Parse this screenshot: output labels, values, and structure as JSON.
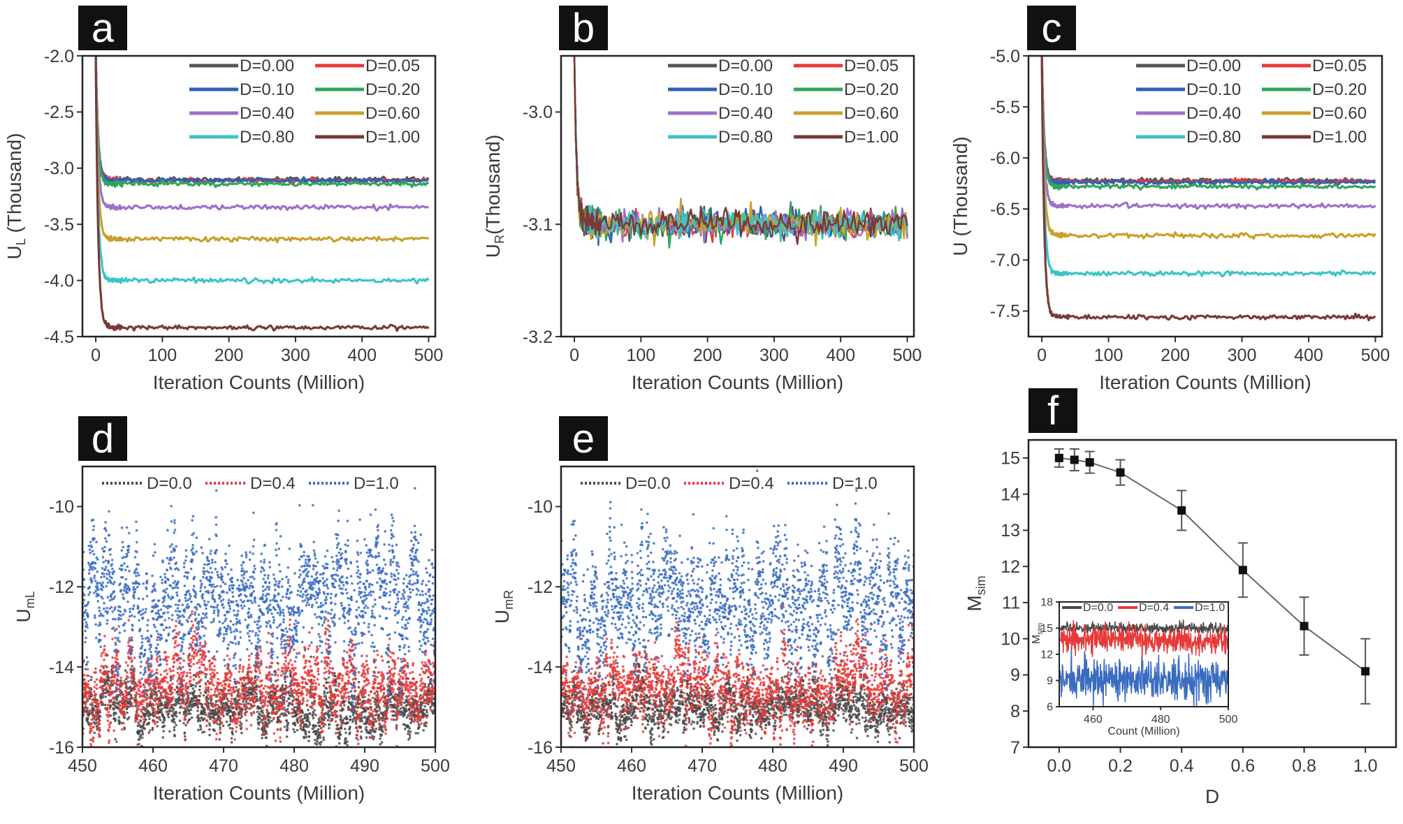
{
  "chart_data": [
    {
      "panel": "a",
      "type": "line",
      "xlabel": "Iteration Counts (Million)",
      "ylabel": "U",
      "ylabel_sub": "L",
      "ylabel_rest": " (Thousand)",
      "xlim": [
        -20,
        510
      ],
      "ylim": [
        -4.5,
        -2.0
      ],
      "xticks": [
        0,
        100,
        200,
        300,
        400,
        500
      ],
      "xtick_labels": [
        "0",
        "100",
        "200",
        "300",
        "400",
        "500"
      ],
      "yticks": [
        -2.0,
        -2.5,
        -3.0,
        -3.5,
        -4.0,
        -4.5
      ],
      "ytick_labels": [
        "-2.0",
        "-2.5",
        "-3.0",
        "-3.5",
        "-4.0",
        "-4.5"
      ],
      "start_value": -2.0,
      "series": [
        {
          "name": "D=0.00",
          "color": "#555555",
          "plateau": -3.1
        },
        {
          "name": "D=0.05",
          "color": "#e8393a",
          "plateau": -3.11
        },
        {
          "name": "D=0.10",
          "color": "#2f62b5",
          "plateau": -3.11
        },
        {
          "name": "D=0.20",
          "color": "#2fa65c",
          "plateau": -3.14
        },
        {
          "name": "D=0.40",
          "color": "#a070c8",
          "plateau": -3.35
        },
        {
          "name": "D=0.60",
          "color": "#c9a02c",
          "plateau": -3.63
        },
        {
          "name": "D=0.80",
          "color": "#3cc4c8",
          "plateau": -4.0
        },
        {
          "name": "D=1.00",
          "color": "#7a3a36",
          "plateau": -4.42
        }
      ]
    },
    {
      "panel": "b",
      "type": "line",
      "xlabel": "Iteration Counts (Million)",
      "ylabel": "U",
      "ylabel_sub": "R",
      "ylabel_rest": "(Thousand)",
      "xlim": [
        -20,
        510
      ],
      "ylim": [
        -3.2,
        -2.95
      ],
      "xticks": [
        0,
        100,
        200,
        300,
        400,
        500
      ],
      "xtick_labels": [
        "0",
        "100",
        "200",
        "300",
        "400",
        "500"
      ],
      "yticks": [
        -3.0,
        -3.1,
        -3.2
      ],
      "ytick_labels": [
        "-3.0",
        "-3.1",
        "-3.2"
      ],
      "start_value": -2.95,
      "noise": 0.006,
      "series": [
        {
          "name": "D=0.00",
          "color": "#555555",
          "plateau": -3.1
        },
        {
          "name": "D=0.05",
          "color": "#e8393a",
          "plateau": -3.1
        },
        {
          "name": "D=0.10",
          "color": "#2f62b5",
          "plateau": -3.1
        },
        {
          "name": "D=0.20",
          "color": "#2fa65c",
          "plateau": -3.1
        },
        {
          "name": "D=0.40",
          "color": "#a070c8",
          "plateau": -3.1
        },
        {
          "name": "D=0.60",
          "color": "#c9a02c",
          "plateau": -3.1
        },
        {
          "name": "D=0.80",
          "color": "#3cc4c8",
          "plateau": -3.1
        },
        {
          "name": "D=1.00",
          "color": "#7a3a36",
          "plateau": -3.1
        }
      ]
    },
    {
      "panel": "c",
      "type": "line",
      "xlabel": "Iteration Counts (Million)",
      "ylabel": "U (Thousand)",
      "xlim": [
        -20,
        510
      ],
      "ylim": [
        -7.75,
        -5.0
      ],
      "xticks": [
        0,
        100,
        200,
        300,
        400,
        500
      ],
      "xtick_labels": [
        "0",
        "100",
        "200",
        "300",
        "400",
        "500"
      ],
      "yticks": [
        -5.0,
        -5.5,
        -6.0,
        -6.5,
        -7.0,
        -7.5
      ],
      "ytick_labels": [
        "-5.0",
        "-5.5",
        "-6.0",
        "-6.5",
        "-7.0",
        "-7.5"
      ],
      "start_value": -5.0,
      "series": [
        {
          "name": "D=0.00",
          "color": "#555555",
          "plateau": -6.22
        },
        {
          "name": "D=0.05",
          "color": "#e8393a",
          "plateau": -6.23
        },
        {
          "name": "D=0.10",
          "color": "#2f62b5",
          "plateau": -6.24
        },
        {
          "name": "D=0.20",
          "color": "#2fa65c",
          "plateau": -6.28
        },
        {
          "name": "D=0.40",
          "color": "#a070c8",
          "plateau": -6.47
        },
        {
          "name": "D=0.60",
          "color": "#c9a02c",
          "plateau": -6.76
        },
        {
          "name": "D=0.80",
          "color": "#3cc4c8",
          "plateau": -7.13
        },
        {
          "name": "D=1.00",
          "color": "#7a3a36",
          "plateau": -7.56
        }
      ]
    },
    {
      "panel": "d",
      "type": "scatter",
      "xlabel": "Iteration Counts (Million)",
      "ylabel": "U",
      "ylabel_sub": "mL",
      "xlim": [
        450,
        500
      ],
      "ylim": [
        -16,
        -9
      ],
      "xticks": [
        450,
        460,
        470,
        480,
        490,
        500
      ],
      "xtick_labels": [
        "450",
        "460",
        "470",
        "480",
        "490",
        "500"
      ],
      "yticks": [
        -10,
        -12,
        -14,
        -16
      ],
      "ytick_labels": [
        "-10",
        "-12",
        "-14",
        "-16"
      ],
      "series": [
        {
          "name": "D=0.0",
          "color": "#4a4a4a",
          "mean": -15.0,
          "spread": 0.4
        },
        {
          "name": "D=0.4",
          "color": "#e83a3a",
          "mean": -14.5,
          "spread": 0.6
        },
        {
          "name": "D=1.0",
          "color": "#3a6cc0",
          "mean": -12.4,
          "spread": 0.9
        }
      ]
    },
    {
      "panel": "e",
      "type": "scatter",
      "xlabel": "Iteration Counts (Million)",
      "ylabel": "U",
      "ylabel_sub": "mR",
      "xlim": [
        450,
        500
      ],
      "ylim": [
        -16,
        -9
      ],
      "xticks": [
        450,
        460,
        470,
        480,
        490,
        500
      ],
      "xtick_labels": [
        "450",
        "460",
        "470",
        "480",
        "490",
        "500"
      ],
      "yticks": [
        -10,
        -12,
        -14,
        -16
      ],
      "ytick_labels": [
        "-10",
        "-12",
        "-14",
        "-16"
      ],
      "series": [
        {
          "name": "D=0.0",
          "color": "#4a4a4a",
          "mean": -15.0,
          "spread": 0.4
        },
        {
          "name": "D=0.4",
          "color": "#e83a3a",
          "mean": -14.5,
          "spread": 0.6
        },
        {
          "name": "D=1.0",
          "color": "#3a6cc0",
          "mean": -12.4,
          "spread": 0.9
        }
      ]
    },
    {
      "panel": "f",
      "type": "line",
      "xlabel": "D",
      "ylabel": "M",
      "ylabel_sub": "sim",
      "xlim": [
        -0.1,
        1.1
      ],
      "ylim": [
        7,
        15.5
      ],
      "xticks": [
        0.0,
        0.2,
        0.4,
        0.6,
        0.8,
        1.0
      ],
      "xtick_labels": [
        "0.0",
        "0.2",
        "0.4",
        "0.6",
        "0.8",
        "1.0"
      ],
      "yticks": [
        7,
        8,
        9,
        10,
        11,
        12,
        13,
        14,
        15
      ],
      "ytick_labels": [
        "7",
        "8",
        "9",
        "10",
        "11",
        "12",
        "13",
        "14",
        "15"
      ],
      "x": [
        0.0,
        0.05,
        0.1,
        0.2,
        0.4,
        0.6,
        0.8,
        1.0
      ],
      "y": [
        15.0,
        14.95,
        14.88,
        14.6,
        13.55,
        11.9,
        10.35,
        9.1
      ],
      "err": [
        0.25,
        0.3,
        0.3,
        0.35,
        0.55,
        0.75,
        0.8,
        0.9
      ],
      "inset": {
        "xlabel": "Count (Million)",
        "ylabel": "M",
        "ylabel_sub": "sim",
        "xlim": [
          450,
          500
        ],
        "ylim": [
          6,
          18
        ],
        "xticks": [
          460,
          480,
          500
        ],
        "xtick_labels": [
          "460",
          "480",
          "500"
        ],
        "yticks": [
          6,
          9,
          12,
          15,
          18
        ],
        "ytick_labels": [
          "6",
          "9",
          "12",
          "15",
          "18"
        ],
        "series": [
          {
            "name": "D=0.0",
            "color": "#4a4a4a",
            "mean": 15.0,
            "spread": 0.3
          },
          {
            "name": "D=0.4",
            "color": "#e83a3a",
            "mean": 13.6,
            "spread": 0.8
          },
          {
            "name": "D=1.0",
            "color": "#3a6cc0",
            "mean": 9.1,
            "spread": 1.1
          }
        ]
      }
    }
  ]
}
